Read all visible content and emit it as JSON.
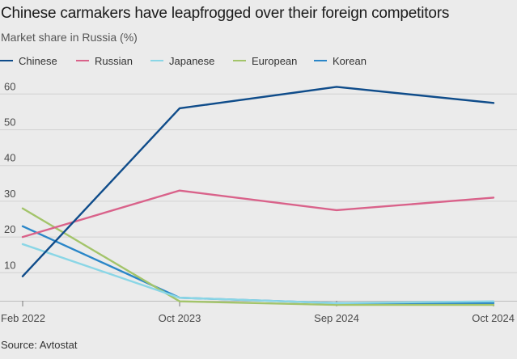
{
  "chart_data": {
    "type": "line",
    "title": "Chinese carmakers have leapfrogged over their foreign competitors",
    "subtitle": "Market share in Russia (%)",
    "source": "Source: Avtostat",
    "x": [
      "Feb 2022",
      "Oct 2023",
      "Sep 2024",
      "Oct 2024"
    ],
    "ylim": [
      0,
      65
    ],
    "yticks": [
      10,
      20,
      30,
      40,
      50,
      60
    ],
    "grid": true,
    "legend_position": "top-left",
    "series": [
      {
        "name": "Chinese",
        "color": "#0f4c8a",
        "values": [
          9,
          56,
          62,
          57.5
        ]
      },
      {
        "name": "Russian",
        "color": "#d9628a",
        "values": [
          20,
          33,
          27.5,
          31
        ]
      },
      {
        "name": "Japanese",
        "color": "#8ad6e6",
        "values": [
          18,
          3,
          1.5,
          2
        ]
      },
      {
        "name": "European",
        "color": "#a3c46a",
        "values": [
          28,
          2,
          1,
          1
        ]
      },
      {
        "name": "Korean",
        "color": "#2a86c8",
        "values": [
          23,
          3,
          1.5,
          1.5
        ]
      }
    ]
  }
}
